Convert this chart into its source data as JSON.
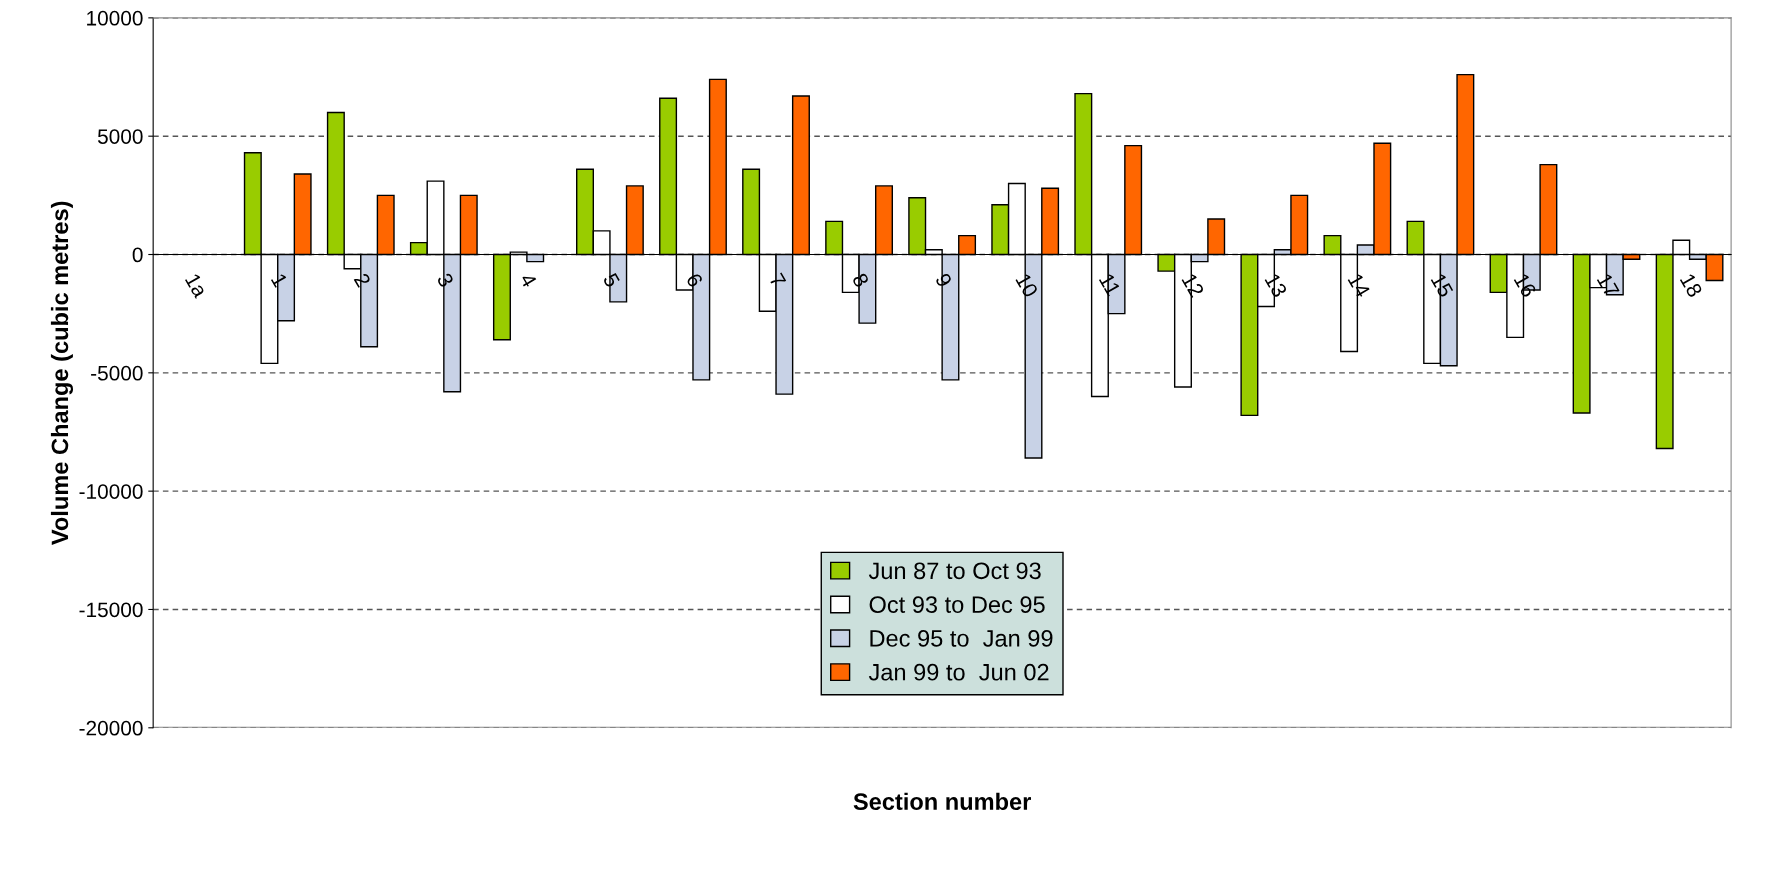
{
  "chart_data": {
    "type": "bar",
    "xlabel": "Section number",
    "ylabel": "Volume Change (cubic metres)",
    "categories": [
      "1a",
      "1",
      "2",
      "3",
      "4",
      "5",
      "6",
      "7",
      "8",
      "9",
      "10",
      "11",
      "12",
      "13",
      "14",
      "15",
      "16",
      "17",
      "18"
    ],
    "series": [
      {
        "name": "Jun 87 to Oct 93",
        "color": "#99cc00",
        "values": [
          null,
          4300,
          6000,
          500,
          -3600,
          3600,
          6600,
          3600,
          1400,
          2400,
          2100,
          6800,
          -700,
          -6800,
          800,
          1400,
          -1600,
          -6700,
          -8200
        ]
      },
      {
        "name": "Oct 93 to Dec 95",
        "color": "#ffffff",
        "values": [
          null,
          -4600,
          -600,
          3100,
          100,
          1000,
          -1500,
          -2400,
          -1600,
          200,
          3000,
          -6000,
          -5600,
          -2200,
          -4100,
          -4600,
          -3500,
          -1400,
          600
        ]
      },
      {
        "name": "Dec 95 to  Jan 99",
        "color": "#c8d2e6",
        "values": [
          null,
          -2800,
          -3900,
          -5800,
          -300,
          -2000,
          -5300,
          -5900,
          -2900,
          -5300,
          -8600,
          -2500,
          -300,
          200,
          400,
          -4700,
          -1500,
          -1700,
          -200
        ]
      },
      {
        "name": "Jan 99 to  Jun 02",
        "color": "#ff6600",
        "values": [
          null,
          3400,
          2500,
          2500,
          null,
          2900,
          7400,
          6700,
          2900,
          800,
          2800,
          4600,
          1500,
          2500,
          4700,
          7600,
          3800,
          -200,
          -1100
        ]
      }
    ],
    "ylim": [
      -20000,
      10000
    ],
    "yticks": [
      -20000,
      -15000,
      -10000,
      -5000,
      0,
      5000,
      10000
    ],
    "grid": "y",
    "legend": "bottom"
  }
}
